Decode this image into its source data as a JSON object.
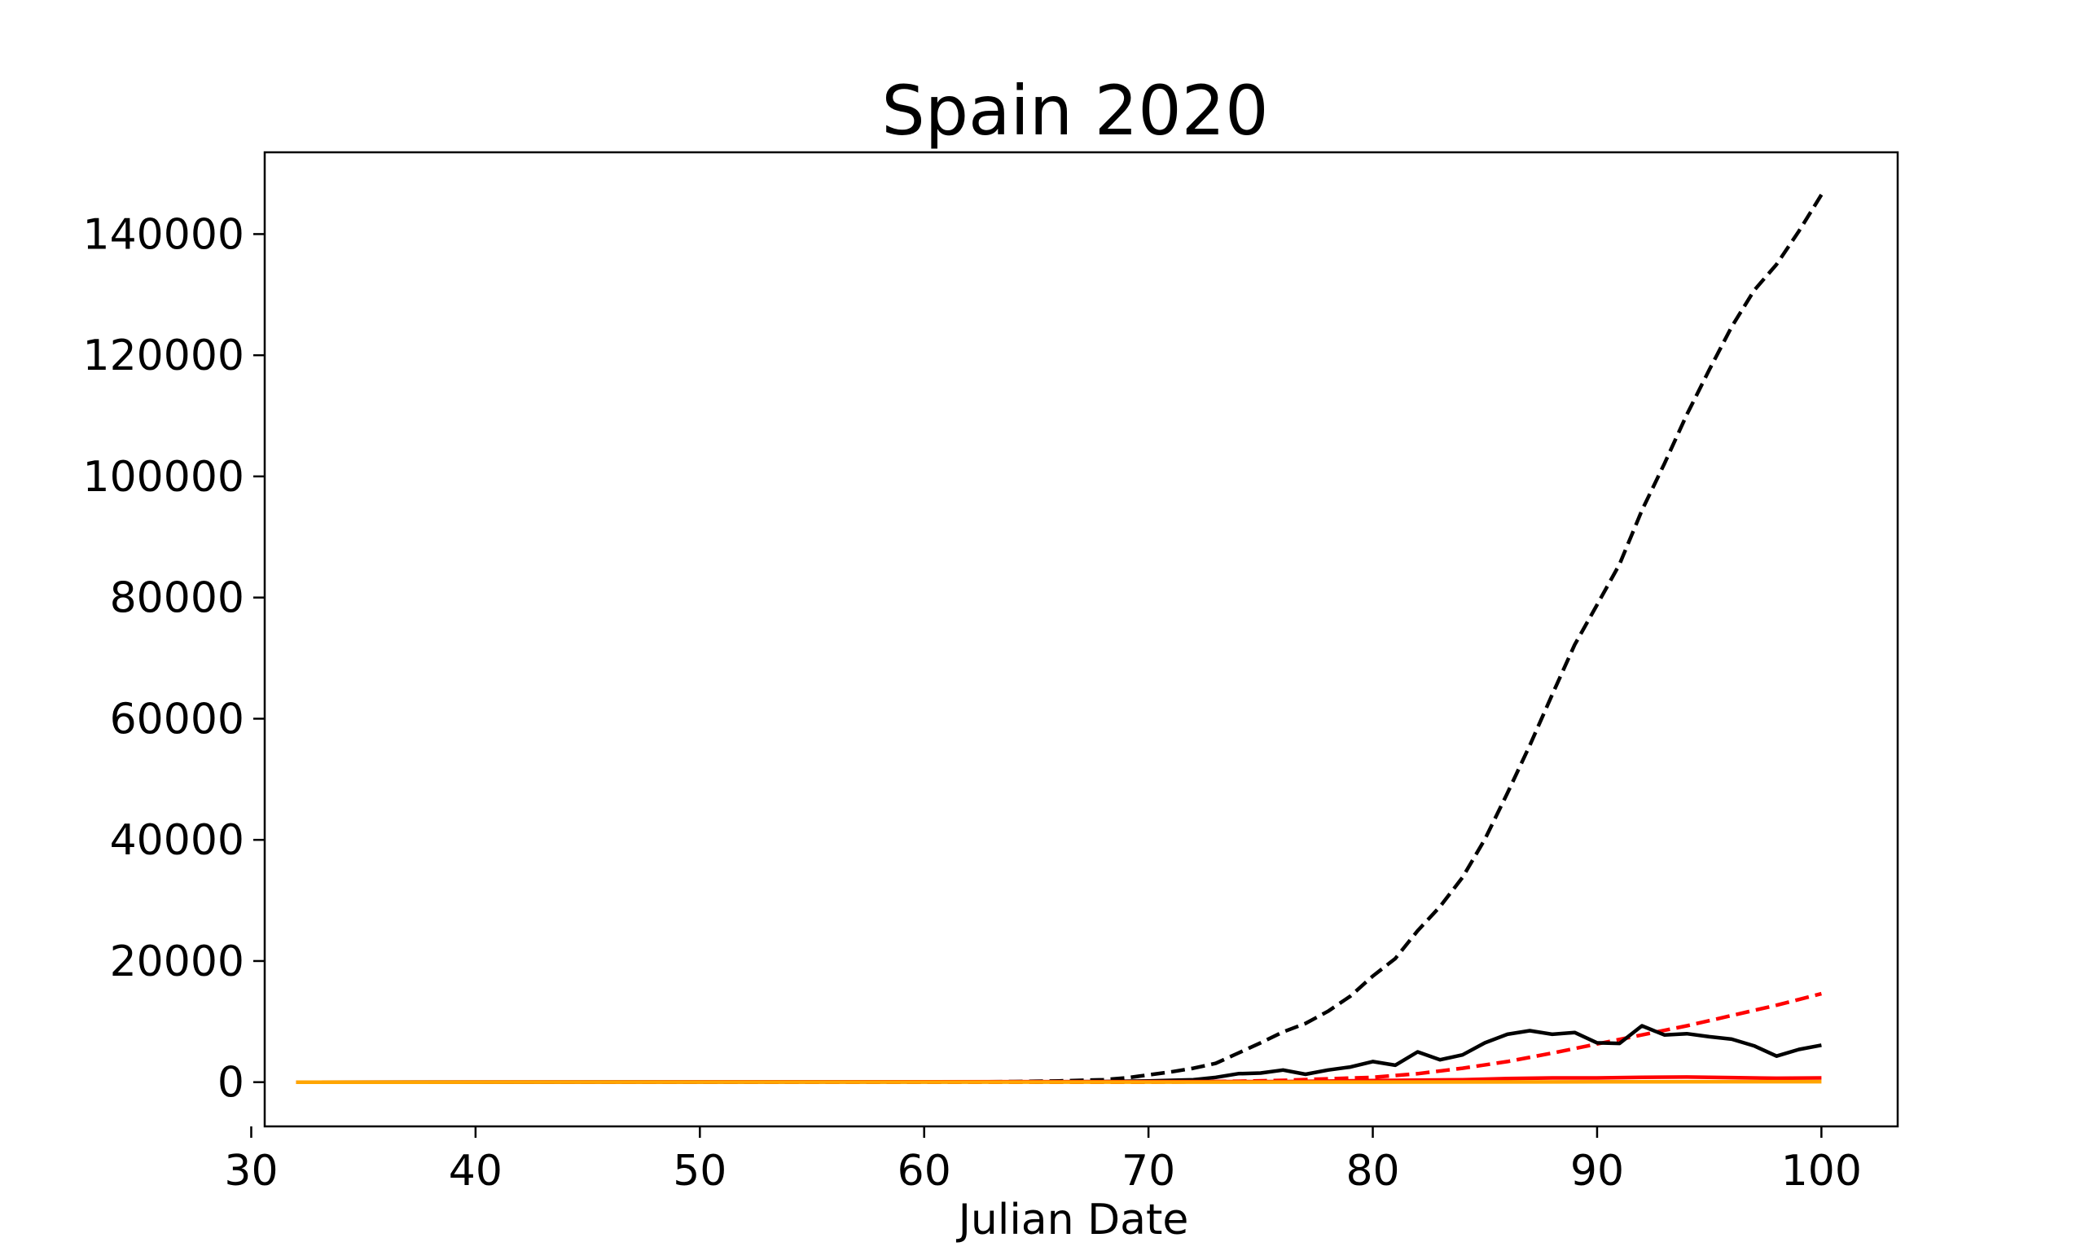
{
  "chart_data": {
    "type": "line",
    "title": "Spain 2020",
    "xlabel": "Julian Date",
    "ylabel": "",
    "xlim": [
      30.6,
      103.4
    ],
    "ylim": [
      -7300,
      153500
    ],
    "x_ticks": [
      30,
      40,
      50,
      60,
      70,
      80,
      90,
      100
    ],
    "y_ticks": [
      0,
      20000,
      40000,
      60000,
      80000,
      100000,
      120000,
      140000
    ],
    "grid": false,
    "series": [
      {
        "style": "dashed",
        "color": "#000000",
        "x": [
          32,
          60,
          64,
          66,
          68,
          69,
          70,
          71,
          72,
          73,
          74,
          75,
          76,
          77,
          78,
          79,
          80,
          81,
          82,
          83,
          84,
          85,
          86,
          87,
          88,
          89,
          90,
          91,
          92,
          93,
          94,
          95,
          96,
          97,
          98,
          99,
          100
        ],
        "values": [
          0,
          0,
          100,
          200,
          400,
          700,
          1200,
          1700,
          2300,
          3100,
          4800,
          6500,
          8300,
          9700,
          11700,
          14200,
          17500,
          20400,
          25000,
          29000,
          33800,
          40100,
          47700,
          55600,
          64000,
          72200,
          78800,
          85500,
          94400,
          102100,
          110200,
          117600,
          124700,
          130700,
          135000,
          140500,
          146500
        ]
      },
      {
        "style": "dashed",
        "color": "#ff0000",
        "x": [
          32,
          70,
          72,
          74,
          76,
          78,
          80,
          82,
          84,
          86,
          88,
          90,
          92,
          94,
          96,
          98,
          100
        ],
        "values": [
          0,
          0,
          50,
          150,
          300,
          550,
          800,
          1400,
          2300,
          3400,
          4800,
          6300,
          7800,
          9300,
          11000,
          12700,
          14600
        ]
      },
      {
        "style": "solid",
        "color": "#000000",
        "x": [
          32,
          66,
          68,
          70,
          71,
          72,
          73,
          74,
          75,
          76,
          77,
          78,
          79,
          80,
          81,
          82,
          83,
          84,
          85,
          86,
          87,
          88,
          89,
          90,
          91,
          92,
          93,
          94,
          95,
          96,
          97,
          98,
          99,
          100
        ],
        "values": [
          0,
          50,
          100,
          200,
          300,
          400,
          800,
          1400,
          1500,
          2000,
          1300,
          2000,
          2500,
          3400,
          2800,
          5000,
          3700,
          4500,
          6500,
          7900,
          8500,
          7900,
          8200,
          6500,
          6400,
          9300,
          7800,
          8000,
          7500,
          7100,
          6000,
          4300,
          5400,
          6100
        ]
      },
      {
        "style": "solid",
        "color": "#ff0000",
        "x": [
          32,
          76,
          80,
          84,
          86,
          88,
          90,
          92,
          94,
          96,
          98,
          100
        ],
        "values": [
          0,
          100,
          250,
          400,
          600,
          700,
          700,
          800,
          850,
          750,
          650,
          700
        ]
      },
      {
        "style": "solid",
        "color": "#ffa500",
        "x": [
          32,
          80,
          90,
          100
        ],
        "values": [
          0,
          20,
          50,
          80
        ]
      }
    ]
  }
}
